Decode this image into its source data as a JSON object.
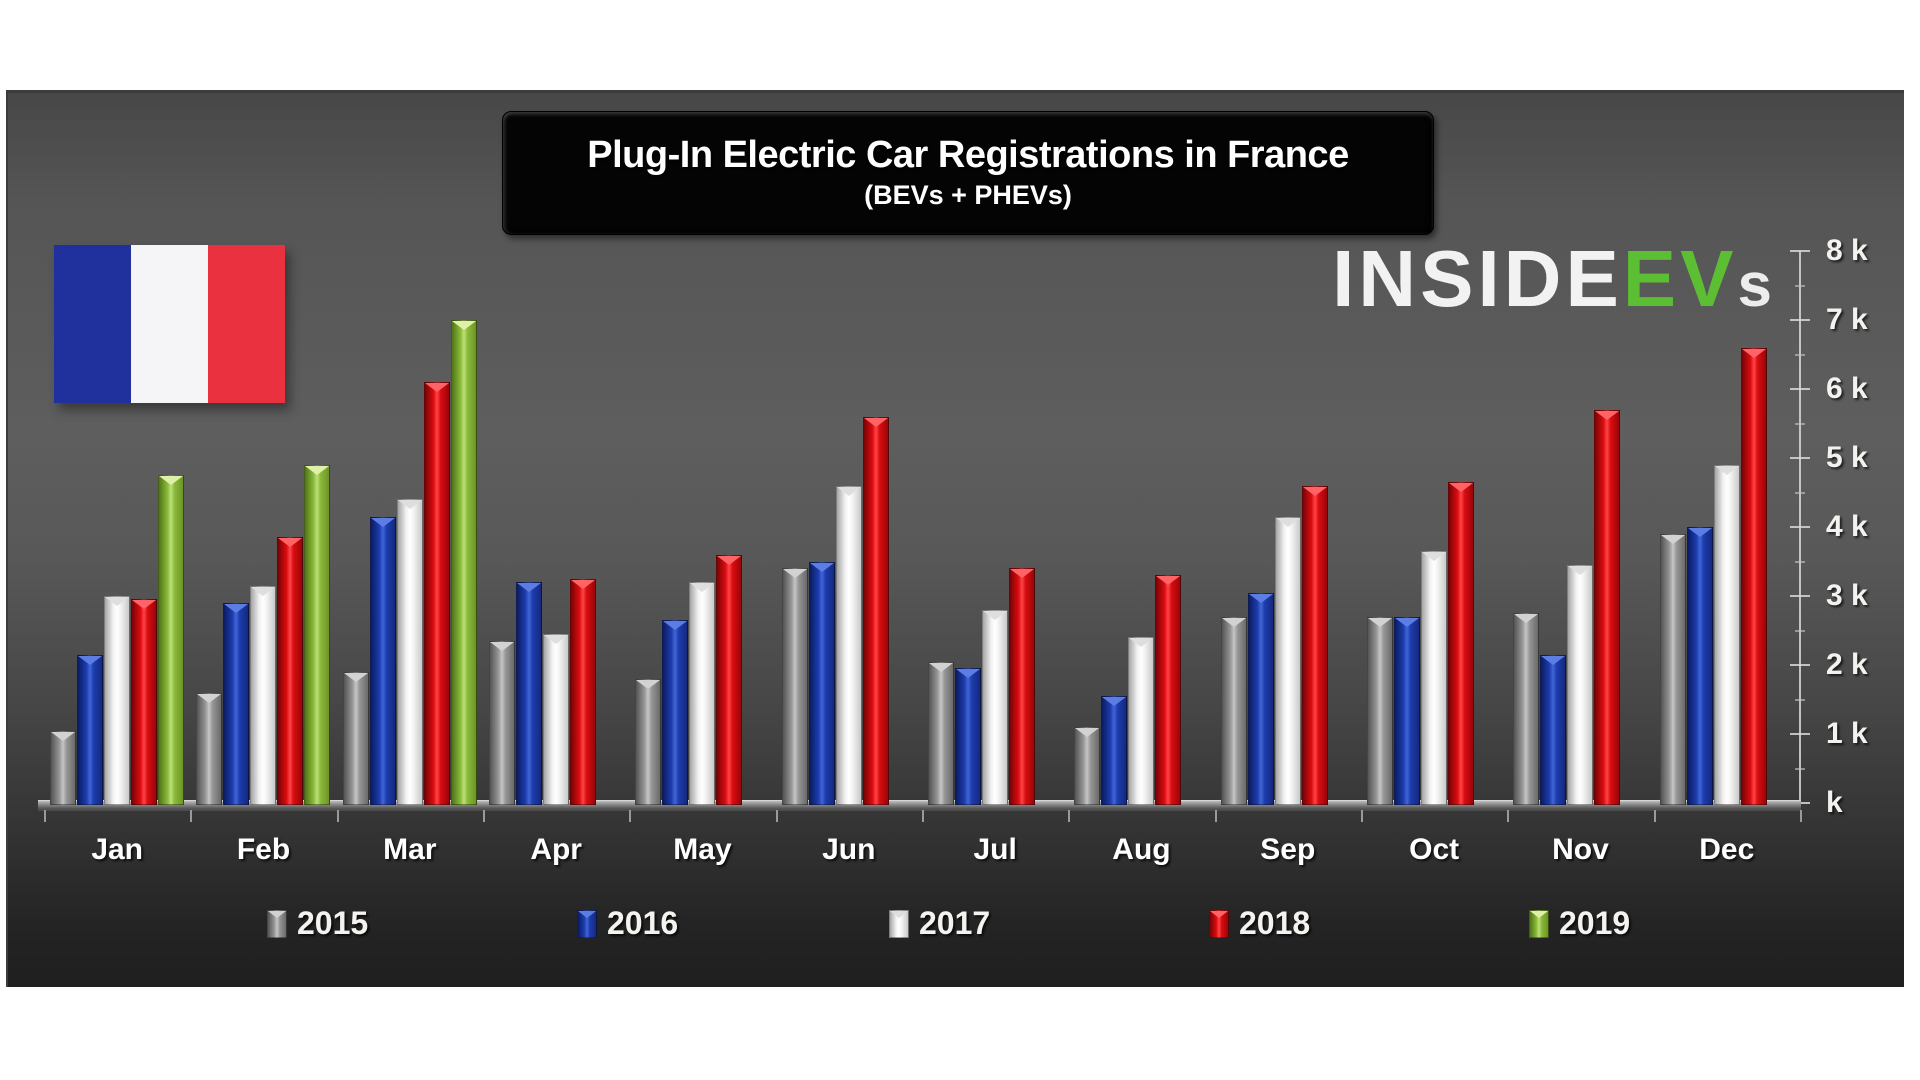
{
  "title": "Plug-In Electric Car Registrations in France",
  "subtitle": "(BEVs + PHEVs)",
  "logo": {
    "part1": "INSIDE",
    "part2": "EV",
    "part3": "s"
  },
  "flag": {
    "colors": [
      "#20309c",
      "#f5f5f8",
      "#e93140"
    ]
  },
  "chart_data": {
    "type": "bar",
    "title": "Plug-In Electric Car Registrations in France",
    "subtitle": "(BEVs + PHEVs)",
    "categories": [
      "Jan",
      "Feb",
      "Mar",
      "Apr",
      "May",
      "Jun",
      "Jul",
      "Aug",
      "Sep",
      "Oct",
      "Nov",
      "Dec"
    ],
    "series": [
      {
        "name": "2015",
        "color": "#969696",
        "values": [
          1050,
          1600,
          1900,
          2350,
          1800,
          3400,
          2050,
          1100,
          2700,
          2700,
          2750,
          3900
        ]
      },
      {
        "name": "2016",
        "color": "#1d3cae",
        "values": [
          2150,
          2900,
          4150,
          3200,
          2650,
          3500,
          1950,
          1550,
          3050,
          2700,
          2150,
          4000
        ]
      },
      {
        "name": "2017",
        "color": "#f3f3f3",
        "values": [
          3000,
          3150,
          4400,
          2450,
          3200,
          4600,
          2800,
          2400,
          4150,
          3650,
          3450,
          4900
        ]
      },
      {
        "name": "2018",
        "color": "#d90c0f",
        "values": [
          2950,
          3850,
          6100,
          3250,
          3600,
          5600,
          3400,
          3300,
          4600,
          4650,
          5700,
          6600
        ]
      },
      {
        "name": "2019",
        "color": "#8ab93a",
        "values": [
          4750,
          4900,
          7000,
          null,
          null,
          null,
          null,
          null,
          null,
          null,
          null,
          null
        ]
      }
    ],
    "ylabel": "",
    "xlabel": "",
    "ylim": [
      0,
      8000
    ],
    "y_tick_labels": [
      "8 k",
      "7 k",
      "6 k",
      "5 k",
      "4 k",
      "3 k",
      "2 k",
      "1 k",
      "k"
    ],
    "y_tick_values": [
      8000,
      7000,
      6000,
      5000,
      4000,
      3000,
      2000,
      1000,
      0
    ],
    "grid": false,
    "legend_position": "bottom"
  },
  "series_styles": {
    "2015": {
      "dark": "#545454",
      "mid": "#969696",
      "light": "#c6c6c6",
      "edge": "#6a6a6a",
      "notch": "#d2d2d2"
    },
    "2016": {
      "dark": "#0b1c63",
      "mid": "#1d3cae",
      "light": "#4166d6",
      "edge": "#16297f",
      "notch": "#5b7de4"
    },
    "2017": {
      "dark": "#a6a6a6",
      "mid": "#f3f3f3",
      "light": "#ffffff",
      "edge": "#c9c9c9",
      "notch": "#dedede"
    },
    "2018": {
      "dark": "#7a0305",
      "mid": "#d90c0f",
      "light": "#ff4347",
      "edge": "#99060a",
      "notch": "#ff6366"
    },
    "2019": {
      "dark": "#4f7518",
      "mid": "#8ab93a",
      "light": "#bde078",
      "edge": "#6d9427",
      "notch": "#dff0a8"
    }
  }
}
